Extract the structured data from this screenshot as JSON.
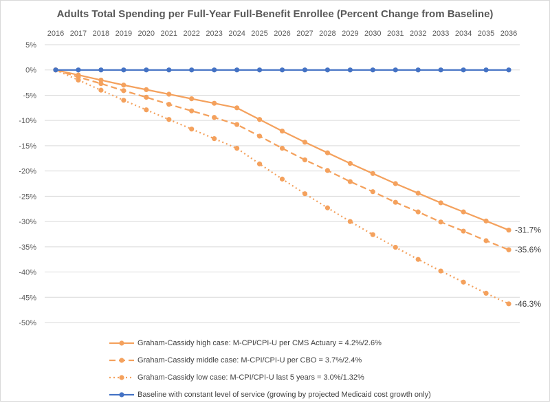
{
  "chart_data": {
    "type": "line",
    "title": "Adults Total Spending per Full-Year Full-Benefit Enrollee (Percent Change from Baseline)",
    "x": [
      "2016",
      "2017",
      "2018",
      "2019",
      "2020",
      "2021",
      "2022",
      "2023",
      "2024",
      "2025",
      "2026",
      "2027",
      "2028",
      "2029",
      "2030",
      "2031",
      "2032",
      "2033",
      "2034",
      "2035",
      "2036"
    ],
    "ylim": [
      -50,
      5
    ],
    "yticks": [
      5,
      0,
      -5,
      -10,
      -15,
      -20,
      -25,
      -30,
      -35,
      -40,
      -45,
      -50
    ],
    "ytick_labels": [
      "5%",
      "0%",
      "-5%",
      "-10%",
      "-15%",
      "-20%",
      "-25%",
      "-30%",
      "-35%",
      "-40%",
      "-45%",
      "-50%"
    ],
    "grid": true,
    "legend_position": "bottom",
    "series": [
      {
        "name": "Graham-Cassidy high case: M-CPI/CPI-U per CMS Actuary = 4.2%/2.6%",
        "color": "#f4a15d",
        "dash": "solid",
        "values": [
          0,
          -1.0,
          -2.0,
          -3.0,
          -3.9,
          -4.8,
          -5.7,
          -6.6,
          -7.5,
          -9.8,
          -12.1,
          -14.3,
          -16.4,
          -18.5,
          -20.5,
          -22.5,
          -24.4,
          -26.3,
          -28.1,
          -29.9,
          -31.7
        ],
        "end_label": "-31.7%"
      },
      {
        "name": "Graham-Cassidy middle case: M-CPI/CPI-U per CBO = 3.7%/2.4%",
        "color": "#f4a15d",
        "dash": "dashed",
        "values": [
          0,
          -1.4,
          -2.7,
          -4.1,
          -5.4,
          -6.8,
          -8.1,
          -9.4,
          -10.8,
          -13.1,
          -15.5,
          -17.8,
          -19.9,
          -22.1,
          -24.1,
          -26.2,
          -28.1,
          -30.1,
          -31.9,
          -33.8,
          -35.6
        ],
        "end_label": "-35.6%"
      },
      {
        "name": "Graham-Cassidy low case: M-CPI/CPI-U last 5 years = 3.0%/1.32%",
        "color": "#f4a15d",
        "dash": "dotted",
        "values": [
          0,
          -2.0,
          -4.0,
          -6.0,
          -7.9,
          -9.8,
          -11.7,
          -13.6,
          -15.5,
          -18.6,
          -21.6,
          -24.5,
          -27.3,
          -30.0,
          -32.6,
          -35.1,
          -37.5,
          -39.8,
          -42.0,
          -44.2,
          -46.3
        ],
        "end_label": "-46.3%"
      },
      {
        "name": "Baseline with constant level of service (growing by projected Medicaid cost growth only)",
        "color": "#4472c4",
        "dash": "solid",
        "values": [
          0,
          0,
          0,
          0,
          0,
          0,
          0,
          0,
          0,
          0,
          0,
          0,
          0,
          0,
          0,
          0,
          0,
          0,
          0,
          0,
          0
        ],
        "end_label": ""
      }
    ]
  }
}
